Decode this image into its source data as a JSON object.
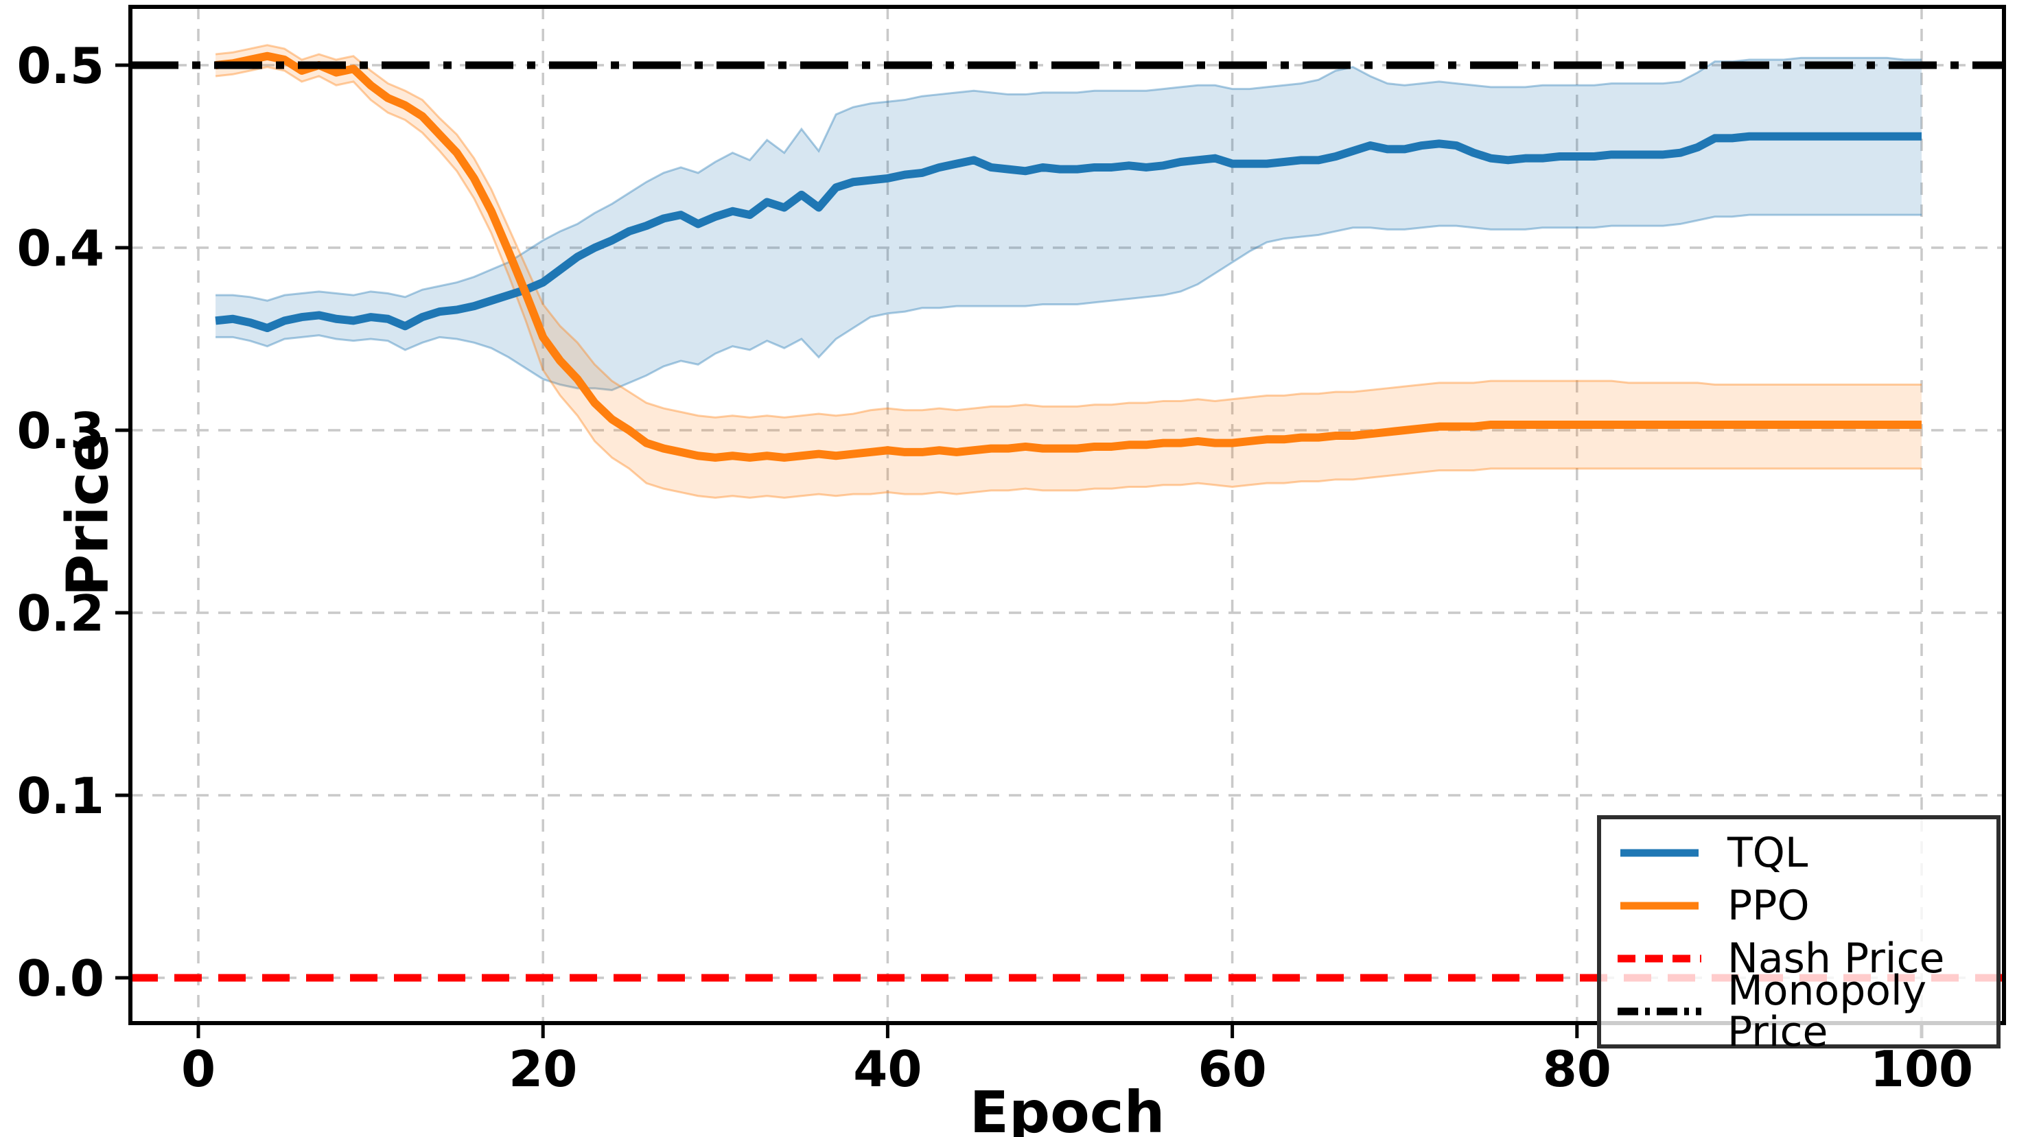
{
  "chart_data": {
    "type": "line",
    "title": "",
    "xlabel": "Epoch",
    "ylabel": "Price",
    "x_tick_labels": [
      "0",
      "20",
      "40",
      "60",
      "80",
      "100"
    ],
    "x_tick_values": [
      0,
      20,
      40,
      60,
      80,
      100
    ],
    "y_tick_labels": [
      "0.0",
      "0.1",
      "0.2",
      "0.3",
      "0.4",
      "0.5"
    ],
    "y_tick_values": [
      0.0,
      0.1,
      0.2,
      0.3,
      0.4,
      0.5
    ],
    "xlim": [
      -3.9,
      104.8
    ],
    "ylim": [
      -0.025,
      0.532
    ],
    "grid": true,
    "grid_color": "#c9c9c9",
    "legend_position": "lower right",
    "x": [
      1,
      2,
      3,
      4,
      5,
      6,
      7,
      8,
      9,
      10,
      11,
      12,
      13,
      14,
      15,
      16,
      17,
      18,
      19,
      20,
      21,
      22,
      23,
      24,
      25,
      26,
      27,
      28,
      29,
      30,
      31,
      32,
      33,
      34,
      35,
      36,
      37,
      38,
      39,
      40,
      41,
      42,
      43,
      44,
      45,
      46,
      47,
      48,
      49,
      50,
      51,
      52,
      53,
      54,
      55,
      56,
      57,
      58,
      59,
      60,
      61,
      62,
      63,
      64,
      65,
      66,
      67,
      68,
      69,
      70,
      71,
      72,
      73,
      74,
      75,
      76,
      77,
      78,
      79,
      80,
      81,
      82,
      83,
      84,
      85,
      86,
      87,
      88,
      89,
      90,
      91,
      92,
      93,
      94,
      95,
      96,
      97,
      98,
      99,
      100
    ],
    "series": [
      {
        "name": "TQL",
        "color": "#1f77b4",
        "style": "solid",
        "band_alpha": 0.18,
        "values": [
          0.36,
          0.361,
          0.359,
          0.356,
          0.36,
          0.362,
          0.363,
          0.361,
          0.36,
          0.362,
          0.361,
          0.357,
          0.362,
          0.365,
          0.366,
          0.368,
          0.371,
          0.374,
          0.377,
          0.381,
          0.388,
          0.395,
          0.4,
          0.404,
          0.409,
          0.412,
          0.416,
          0.418,
          0.413,
          0.417,
          0.42,
          0.418,
          0.425,
          0.422,
          0.429,
          0.422,
          0.433,
          0.436,
          0.437,
          0.438,
          0.44,
          0.441,
          0.444,
          0.446,
          0.448,
          0.444,
          0.443,
          0.442,
          0.444,
          0.443,
          0.443,
          0.444,
          0.444,
          0.445,
          0.444,
          0.445,
          0.447,
          0.448,
          0.449,
          0.446,
          0.446,
          0.446,
          0.447,
          0.448,
          0.448,
          0.45,
          0.453,
          0.456,
          0.454,
          0.454,
          0.456,
          0.457,
          0.456,
          0.452,
          0.449,
          0.448,
          0.449,
          0.449,
          0.45,
          0.45,
          0.45,
          0.451,
          0.451,
          0.451,
          0.451,
          0.452,
          0.455,
          0.46,
          0.46,
          0.461,
          0.461,
          0.461,
          0.461,
          0.461,
          0.461,
          0.461,
          0.461,
          0.461,
          0.461,
          0.461
        ],
        "band_upper": [
          0.374,
          0.374,
          0.373,
          0.371,
          0.374,
          0.375,
          0.376,
          0.375,
          0.374,
          0.376,
          0.375,
          0.373,
          0.377,
          0.379,
          0.381,
          0.384,
          0.388,
          0.392,
          0.398,
          0.404,
          0.409,
          0.413,
          0.419,
          0.424,
          0.43,
          0.436,
          0.441,
          0.444,
          0.441,
          0.447,
          0.452,
          0.448,
          0.459,
          0.452,
          0.465,
          0.453,
          0.473,
          0.477,
          0.479,
          0.48,
          0.481,
          0.483,
          0.484,
          0.485,
          0.486,
          0.485,
          0.484,
          0.484,
          0.485,
          0.485,
          0.485,
          0.486,
          0.486,
          0.486,
          0.486,
          0.487,
          0.488,
          0.489,
          0.489,
          0.487,
          0.487,
          0.488,
          0.489,
          0.49,
          0.492,
          0.497,
          0.499,
          0.494,
          0.49,
          0.489,
          0.49,
          0.491,
          0.49,
          0.489,
          0.488,
          0.488,
          0.488,
          0.489,
          0.489,
          0.489,
          0.489,
          0.49,
          0.49,
          0.49,
          0.49,
          0.491,
          0.496,
          0.502,
          0.502,
          0.503,
          0.503,
          0.503,
          0.504,
          0.504,
          0.504,
          0.504,
          0.504,
          0.504,
          0.503,
          0.503
        ],
        "band_lower": [
          0.351,
          0.351,
          0.349,
          0.346,
          0.35,
          0.351,
          0.352,
          0.35,
          0.349,
          0.35,
          0.349,
          0.344,
          0.348,
          0.351,
          0.35,
          0.348,
          0.345,
          0.34,
          0.334,
          0.328,
          0.325,
          0.323,
          0.323,
          0.322,
          0.326,
          0.33,
          0.335,
          0.338,
          0.336,
          0.342,
          0.346,
          0.344,
          0.349,
          0.345,
          0.35,
          0.34,
          0.35,
          0.356,
          0.362,
          0.364,
          0.365,
          0.367,
          0.367,
          0.368,
          0.368,
          0.368,
          0.368,
          0.368,
          0.369,
          0.369,
          0.369,
          0.37,
          0.371,
          0.372,
          0.373,
          0.374,
          0.376,
          0.38,
          0.386,
          0.392,
          0.398,
          0.403,
          0.405,
          0.406,
          0.407,
          0.409,
          0.411,
          0.411,
          0.41,
          0.41,
          0.411,
          0.412,
          0.412,
          0.411,
          0.41,
          0.41,
          0.41,
          0.411,
          0.411,
          0.411,
          0.411,
          0.412,
          0.412,
          0.412,
          0.412,
          0.413,
          0.415,
          0.417,
          0.417,
          0.418,
          0.418,
          0.418,
          0.418,
          0.418,
          0.418,
          0.418,
          0.418,
          0.418,
          0.418,
          0.418
        ]
      },
      {
        "name": "PPO",
        "color": "#ff7f0e",
        "style": "solid",
        "band_alpha": 0.16,
        "values": [
          0.5,
          0.501,
          0.503,
          0.505,
          0.503,
          0.497,
          0.5,
          0.496,
          0.498,
          0.489,
          0.482,
          0.478,
          0.472,
          0.462,
          0.452,
          0.438,
          0.42,
          0.398,
          0.375,
          0.351,
          0.338,
          0.328,
          0.315,
          0.306,
          0.3,
          0.293,
          0.29,
          0.288,
          0.286,
          0.285,
          0.286,
          0.285,
          0.286,
          0.285,
          0.286,
          0.287,
          0.286,
          0.287,
          0.288,
          0.289,
          0.288,
          0.288,
          0.289,
          0.288,
          0.289,
          0.29,
          0.29,
          0.291,
          0.29,
          0.29,
          0.29,
          0.291,
          0.291,
          0.292,
          0.292,
          0.293,
          0.293,
          0.294,
          0.293,
          0.293,
          0.294,
          0.295,
          0.295,
          0.296,
          0.296,
          0.297,
          0.297,
          0.298,
          0.299,
          0.3,
          0.301,
          0.302,
          0.302,
          0.302,
          0.303,
          0.303,
          0.303,
          0.303,
          0.303,
          0.303,
          0.303,
          0.303,
          0.303,
          0.303,
          0.303,
          0.303,
          0.303,
          0.303,
          0.303,
          0.303,
          0.303,
          0.303,
          0.303,
          0.303,
          0.303,
          0.303,
          0.303,
          0.303,
          0.303,
          0.303
        ],
        "band_upper": [
          0.506,
          0.507,
          0.509,
          0.511,
          0.509,
          0.503,
          0.506,
          0.503,
          0.505,
          0.497,
          0.49,
          0.486,
          0.481,
          0.471,
          0.462,
          0.449,
          0.432,
          0.411,
          0.39,
          0.369,
          0.357,
          0.348,
          0.336,
          0.327,
          0.321,
          0.315,
          0.312,
          0.31,
          0.308,
          0.307,
          0.308,
          0.307,
          0.308,
          0.307,
          0.308,
          0.309,
          0.308,
          0.309,
          0.311,
          0.312,
          0.311,
          0.311,
          0.312,
          0.311,
          0.312,
          0.313,
          0.313,
          0.314,
          0.313,
          0.313,
          0.313,
          0.314,
          0.314,
          0.315,
          0.315,
          0.316,
          0.316,
          0.317,
          0.316,
          0.317,
          0.318,
          0.319,
          0.319,
          0.32,
          0.32,
          0.321,
          0.321,
          0.322,
          0.323,
          0.324,
          0.325,
          0.326,
          0.326,
          0.326,
          0.327,
          0.327,
          0.327,
          0.327,
          0.327,
          0.327,
          0.327,
          0.327,
          0.326,
          0.326,
          0.326,
          0.326,
          0.326,
          0.325,
          0.325,
          0.325,
          0.325,
          0.325,
          0.325,
          0.325,
          0.325,
          0.325,
          0.325,
          0.325,
          0.325,
          0.325
        ],
        "band_lower": [
          0.494,
          0.495,
          0.497,
          0.499,
          0.497,
          0.491,
          0.494,
          0.489,
          0.491,
          0.481,
          0.474,
          0.47,
          0.463,
          0.453,
          0.442,
          0.427,
          0.408,
          0.385,
          0.36,
          0.333,
          0.319,
          0.308,
          0.294,
          0.285,
          0.279,
          0.271,
          0.268,
          0.266,
          0.264,
          0.263,
          0.264,
          0.263,
          0.264,
          0.263,
          0.264,
          0.265,
          0.264,
          0.265,
          0.265,
          0.266,
          0.265,
          0.265,
          0.266,
          0.265,
          0.266,
          0.267,
          0.267,
          0.268,
          0.267,
          0.267,
          0.267,
          0.268,
          0.268,
          0.269,
          0.269,
          0.27,
          0.27,
          0.271,
          0.27,
          0.269,
          0.27,
          0.271,
          0.271,
          0.272,
          0.272,
          0.273,
          0.273,
          0.274,
          0.275,
          0.276,
          0.277,
          0.278,
          0.278,
          0.278,
          0.279,
          0.279,
          0.279,
          0.279,
          0.279,
          0.279,
          0.279,
          0.279,
          0.279,
          0.279,
          0.279,
          0.279,
          0.279,
          0.279,
          0.279,
          0.279,
          0.279,
          0.279,
          0.279,
          0.279,
          0.279,
          0.279,
          0.279,
          0.279,
          0.279,
          0.279
        ]
      },
      {
        "name": "Nash Price",
        "color": "#ff0000",
        "style": "dashed",
        "constant": 0.0
      },
      {
        "name": "Monopoly Price",
        "color": "#000000",
        "style": "dashdot",
        "constant": 0.5
      }
    ]
  }
}
